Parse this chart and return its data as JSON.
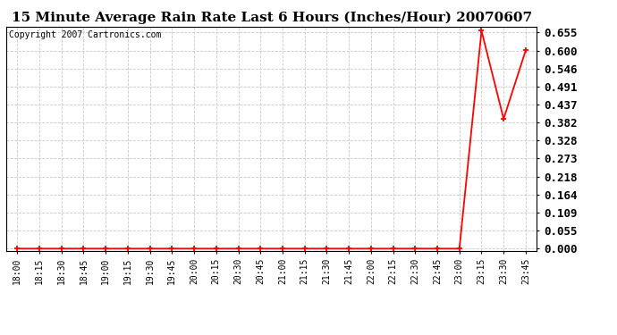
{
  "title": "15 Minute Average Rain Rate Last 6 Hours (Inches/Hour) 20070607",
  "copyright": "Copyright 2007 Cartronics.com",
  "x_labels": [
    "18:00",
    "18:15",
    "18:30",
    "18:45",
    "19:00",
    "19:15",
    "19:30",
    "19:45",
    "20:00",
    "20:15",
    "20:30",
    "20:45",
    "21:00",
    "21:15",
    "21:30",
    "21:45",
    "22:00",
    "22:15",
    "22:30",
    "22:45",
    "23:00",
    "23:15",
    "23:30",
    "23:45"
  ],
  "y_values": [
    0.0,
    0.0,
    0.0,
    0.0,
    0.0,
    0.0,
    0.0,
    0.0,
    0.0,
    0.0,
    0.0,
    0.0,
    0.0,
    0.0,
    0.0,
    0.0,
    0.0,
    0.0,
    0.0,
    0.0,
    0.0,
    0.66,
    0.393,
    0.601
  ],
  "y_ticks": [
    0.0,
    0.055,
    0.109,
    0.164,
    0.218,
    0.273,
    0.328,
    0.382,
    0.437,
    0.491,
    0.546,
    0.6,
    0.655
  ],
  "line_color": "#FF0000",
  "marker_color": "#FF0000",
  "bg_color": "#FFFFFF",
  "grid_color": "#C8C8C8",
  "title_fontsize": 11,
  "copyright_fontsize": 7,
  "ytick_fontsize": 9,
  "xtick_fontsize": 7,
  "ylim_min": -0.008,
  "ylim_max": 0.672
}
